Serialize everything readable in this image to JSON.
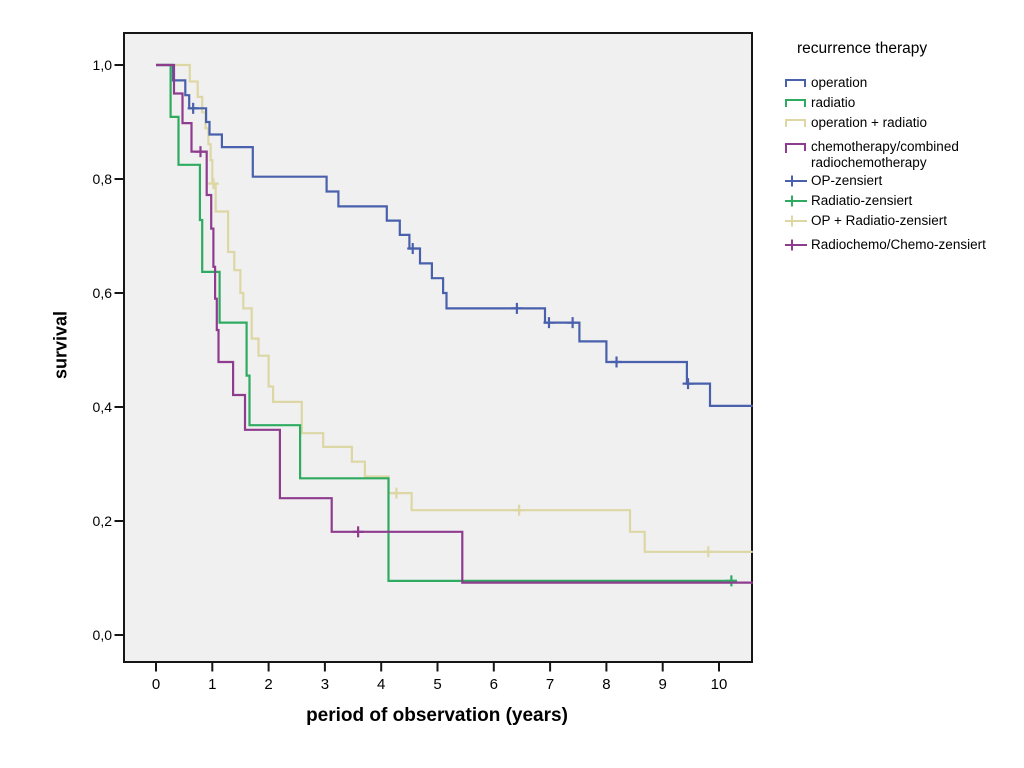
{
  "chart_data": {
    "type": "line",
    "subtype": "kaplan-meier-step-curves",
    "title": "",
    "xlabel": "period of observation (years)",
    "ylabel": "survival",
    "xlim": [
      -0.59,
      10.6
    ],
    "ylim": [
      -0.05,
      1.06
    ],
    "grid": false,
    "plot_background": "#f0f0f0",
    "frame_color": "#161616",
    "xticks": {
      "values": [
        0,
        1,
        2,
        3,
        4,
        5,
        6,
        7,
        8,
        9,
        10
      ],
      "labels": [
        "0",
        "1",
        "2",
        "3",
        "4",
        "5",
        "6",
        "7",
        "8",
        "9",
        "10"
      ]
    },
    "yticks": {
      "values": [
        0,
        0.2,
        0.4,
        0.6,
        0.8,
        1.0
      ],
      "labels": [
        "0,0",
        "0,2",
        "0,4",
        "0,6",
        "0,8",
        "1,0"
      ]
    },
    "legend": {
      "title": "recurrence therapy",
      "position": "right",
      "items": [
        {
          "label": "operation",
          "type": "step",
          "color": "#4961ac"
        },
        {
          "label": "radiatio",
          "type": "step",
          "color": "#2eab60"
        },
        {
          "label": "operation + radiatio",
          "type": "step",
          "color": "#dcd7a4"
        },
        {
          "label": "chemotherapy/combined radiochemotherapy",
          "type": "step",
          "color": "#8e3c8e"
        },
        {
          "label": "OP-zensiert",
          "type": "censor",
          "color": "#4961ac"
        },
        {
          "label": "Radiatio-zensiert",
          "type": "censor",
          "color": "#2eab60"
        },
        {
          "label": "OP + Radiatio-zensiert",
          "type": "censor",
          "color": "#dcd7a4"
        },
        {
          "label": "Radiochemo/Chemo-zensiert",
          "type": "censor",
          "color": "#8e3c8e"
        }
      ]
    },
    "series": [
      {
        "name": "operation",
        "color": "#4961ac",
        "end": 10.6,
        "steps": [
          [
            0,
            1.0
          ],
          [
            0.3,
            0.973
          ],
          [
            0.52,
            0.947
          ],
          [
            0.59,
            0.924
          ],
          [
            0.89,
            0.9
          ],
          [
            0.95,
            0.878
          ],
          [
            1.17,
            0.856
          ],
          [
            1.72,
            0.804
          ],
          [
            3.03,
            0.778
          ],
          [
            3.24,
            0.752
          ],
          [
            4.1,
            0.727
          ],
          [
            4.33,
            0.702
          ],
          [
            4.5,
            0.678
          ],
          [
            4.69,
            0.652
          ],
          [
            4.9,
            0.626
          ],
          [
            5.1,
            0.6
          ],
          [
            5.16,
            0.573
          ],
          [
            6.91,
            0.548
          ],
          [
            7.52,
            0.515
          ],
          [
            8.0,
            0.479
          ],
          [
            9.43,
            0.441
          ],
          [
            9.84,
            0.402
          ]
        ],
        "censored": [
          [
            0.66,
            0.924
          ],
          [
            4.56,
            0.678
          ],
          [
            6.41,
            0.573
          ],
          [
            6.98,
            0.548
          ],
          [
            7.4,
            0.548
          ],
          [
            8.18,
            0.479
          ],
          [
            9.45,
            0.441
          ]
        ]
      },
      {
        "name": "radiatio",
        "color": "#2eab60",
        "end": 10.32,
        "steps": [
          [
            0,
            1.0
          ],
          [
            0.26,
            0.909
          ],
          [
            0.4,
            0.825
          ],
          [
            0.78,
            0.728
          ],
          [
            0.82,
            0.637
          ],
          [
            1.13,
            0.548
          ],
          [
            1.61,
            0.455
          ],
          [
            1.66,
            0.368
          ],
          [
            2.56,
            0.275
          ],
          [
            4.13,
            0.095
          ]
        ],
        "censored": [
          [
            10.22,
            0.095
          ]
        ]
      },
      {
        "name": "operation + radiatio",
        "color": "#dcd7a4",
        "end": 10.6,
        "steps": [
          [
            0,
            1.0
          ],
          [
            0.6,
            0.971
          ],
          [
            0.74,
            0.944
          ],
          [
            0.82,
            0.917
          ],
          [
            0.88,
            0.889
          ],
          [
            0.93,
            0.861
          ],
          [
            0.97,
            0.833
          ],
          [
            1.0,
            0.792
          ],
          [
            1.06,
            0.743
          ],
          [
            1.28,
            0.672
          ],
          [
            1.39,
            0.64
          ],
          [
            1.5,
            0.6
          ],
          [
            1.55,
            0.573
          ],
          [
            1.7,
            0.52
          ],
          [
            1.82,
            0.49
          ],
          [
            2.0,
            0.436
          ],
          [
            2.08,
            0.409
          ],
          [
            2.59,
            0.354
          ],
          [
            2.97,
            0.33
          ],
          [
            3.48,
            0.304
          ],
          [
            3.71,
            0.278
          ],
          [
            4.13,
            0.249
          ],
          [
            4.54,
            0.219
          ],
          [
            8.42,
            0.181
          ],
          [
            8.68,
            0.146
          ]
        ],
        "censored": [
          [
            1.02,
            0.792
          ],
          [
            4.27,
            0.249
          ],
          [
            6.45,
            0.219
          ],
          [
            9.81,
            0.146
          ]
        ]
      },
      {
        "name": "chemotherapy/combined radiochemotherapy",
        "color": "#8e3c8e",
        "end": 10.6,
        "steps": [
          [
            0,
            1.0
          ],
          [
            0.32,
            0.95
          ],
          [
            0.47,
            0.898
          ],
          [
            0.63,
            0.848
          ],
          [
            0.9,
            0.772
          ],
          [
            0.98,
            0.713
          ],
          [
            1.02,
            0.646
          ],
          [
            1.05,
            0.59
          ],
          [
            1.08,
            0.535
          ],
          [
            1.11,
            0.479
          ],
          [
            1.37,
            0.421
          ],
          [
            1.58,
            0.36
          ],
          [
            2.2,
            0.24
          ],
          [
            3.12,
            0.181
          ],
          [
            5.44,
            0.092
          ]
        ],
        "censored": [
          [
            0.79,
            0.848
          ],
          [
            3.59,
            0.181
          ]
        ]
      }
    ]
  }
}
